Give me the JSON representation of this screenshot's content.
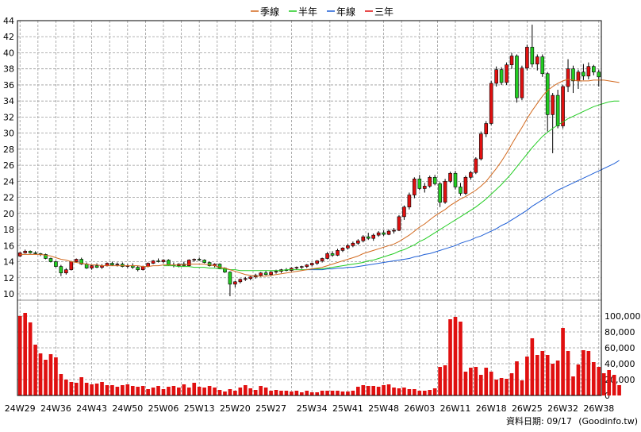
{
  "chart_data": {
    "type": "candlestick",
    "legend": {
      "placement": "top",
      "items": [
        {
          "label": "季線",
          "color": "#d2691e"
        },
        {
          "label": "半年",
          "color": "#22cc22"
        },
        {
          "label": "年線",
          "color": "#1f5fd6"
        },
        {
          "label": "三年",
          "color": "#e01010"
        }
      ]
    },
    "up_color": "#e01010",
    "down_color": "#22cc22",
    "volume_color": "#e01010",
    "price_axis": {
      "min": 10,
      "max": 44,
      "step": 2,
      "ticks": [
        "10",
        "12",
        "14",
        "16",
        "18",
        "20",
        "22",
        "24",
        "26",
        "28",
        "30",
        "32",
        "34",
        "36",
        "38",
        "40",
        "42",
        "44"
      ]
    },
    "volume_axis": {
      "min": 0,
      "max": 120000,
      "ticks": [
        "0",
        "20,000",
        "40,000",
        "60,000",
        "80,000",
        "100,000"
      ],
      "tick_values": [
        0,
        20000,
        40000,
        60000,
        80000,
        100000
      ]
    },
    "x_labels": [
      "24W29",
      "24W36",
      "24W43",
      "24W50",
      "25W06",
      "25W13",
      "25W20",
      "25W27",
      "25W34",
      "25W41",
      "25W48",
      "26W03",
      "26W11",
      "26W18",
      "26W25",
      "26W32",
      "26W38"
    ],
    "grid": true,
    "footnote": "資料日期: 09/17",
    "source": "(Goodinfo.tw)",
    "candles": [
      [
        14.7,
        15.2,
        14.6,
        15.1
      ],
      [
        15.1,
        15.5,
        15.0,
        15.3
      ],
      [
        15.3,
        15.4,
        15.0,
        15.1
      ],
      [
        15.1,
        15.3,
        14.9,
        15.0
      ],
      [
        15.0,
        15.1,
        14.7,
        14.9
      ],
      [
        14.9,
        15.0,
        14.3,
        14.4
      ],
      [
        14.4,
        14.5,
        13.9,
        14.0
      ],
      [
        14.0,
        14.1,
        13.3,
        13.4
      ],
      [
        13.4,
        13.6,
        12.2,
        12.6
      ],
      [
        12.6,
        13.2,
        12.4,
        13.0
      ],
      [
        13.0,
        14.1,
        12.9,
        14.0
      ],
      [
        14.0,
        14.4,
        13.9,
        14.3
      ],
      [
        14.3,
        14.5,
        13.6,
        13.7
      ],
      [
        13.7,
        13.9,
        13.1,
        13.2
      ],
      [
        13.2,
        13.6,
        13.0,
        13.5
      ],
      [
        13.5,
        13.8,
        13.2,
        13.3
      ],
      [
        13.3,
        13.7,
        13.1,
        13.5
      ],
      [
        13.5,
        13.9,
        13.4,
        13.8
      ],
      [
        13.8,
        14.0,
        13.5,
        13.6
      ],
      [
        13.6,
        13.9,
        13.4,
        13.7
      ],
      [
        13.7,
        13.9,
        13.3,
        13.4
      ],
      [
        13.4,
        13.7,
        13.2,
        13.5
      ],
      [
        13.5,
        13.8,
        13.1,
        13.3
      ],
      [
        13.3,
        13.5,
        12.8,
        13.0
      ],
      [
        13.0,
        13.5,
        12.9,
        13.4
      ],
      [
        13.4,
        13.9,
        13.3,
        13.8
      ],
      [
        13.8,
        14.2,
        13.7,
        14.1
      ],
      [
        14.1,
        14.4,
        13.9,
        14.0
      ],
      [
        14.0,
        14.3,
        13.8,
        14.2
      ],
      [
        14.2,
        14.3,
        13.5,
        13.6
      ],
      [
        13.6,
        13.9,
        13.3,
        13.5
      ],
      [
        13.5,
        13.8,
        13.3,
        13.7
      ],
      [
        13.7,
        14.0,
        13.4,
        13.5
      ],
      [
        13.5,
        14.3,
        13.4,
        14.2
      ],
      [
        14.2,
        14.4,
        14.0,
        14.3
      ],
      [
        14.3,
        14.5,
        14.1,
        14.2
      ],
      [
        14.2,
        14.3,
        13.8,
        13.9
      ],
      [
        13.9,
        14.0,
        13.4,
        13.5
      ],
      [
        13.5,
        13.8,
        13.3,
        13.7
      ],
      [
        13.7,
        13.8,
        13.1,
        13.2
      ],
      [
        13.2,
        13.3,
        12.6,
        12.7
      ],
      [
        12.7,
        12.8,
        9.7,
        11.2
      ],
      [
        11.2,
        11.6,
        10.8,
        11.5
      ],
      [
        11.5,
        11.9,
        11.3,
        11.8
      ],
      [
        11.8,
        12.1,
        11.6,
        11.9
      ],
      [
        11.9,
        12.2,
        11.7,
        12.1
      ],
      [
        12.1,
        12.5,
        11.9,
        12.3
      ],
      [
        12.3,
        12.7,
        12.1,
        12.6
      ],
      [
        12.6,
        12.9,
        12.3,
        12.4
      ],
      [
        12.4,
        12.8,
        12.2,
        12.7
      ],
      [
        12.7,
        13.0,
        12.5,
        12.8
      ],
      [
        12.8,
        13.1,
        12.6,
        13.0
      ],
      [
        13.0,
        13.2,
        12.8,
        12.9
      ],
      [
        12.9,
        13.3,
        12.8,
        13.2
      ],
      [
        13.2,
        13.4,
        13.0,
        13.3
      ],
      [
        13.3,
        13.5,
        13.1,
        13.4
      ],
      [
        13.4,
        13.7,
        13.2,
        13.6
      ],
      [
        13.6,
        13.9,
        13.4,
        13.8
      ],
      [
        13.8,
        14.2,
        13.6,
        14.1
      ],
      [
        14.1,
        14.5,
        13.9,
        14.4
      ],
      [
        14.4,
        15.2,
        14.3,
        15.0
      ],
      [
        15.0,
        15.3,
        14.6,
        14.8
      ],
      [
        14.8,
        15.6,
        14.7,
        15.4
      ],
      [
        15.4,
        15.8,
        15.2,
        15.7
      ],
      [
        15.7,
        16.2,
        15.5,
        16.0
      ],
      [
        16.0,
        16.5,
        15.8,
        16.3
      ],
      [
        16.3,
        16.8,
        16.1,
        16.6
      ],
      [
        16.6,
        17.3,
        16.4,
        17.1
      ],
      [
        17.1,
        17.6,
        16.7,
        16.9
      ],
      [
        16.9,
        17.5,
        16.6,
        17.3
      ],
      [
        17.3,
        17.8,
        17.1,
        17.6
      ],
      [
        17.6,
        17.9,
        17.2,
        17.4
      ],
      [
        17.4,
        18.0,
        17.3,
        17.8
      ],
      [
        17.8,
        18.2,
        17.5,
        17.9
      ],
      [
        17.9,
        19.8,
        17.8,
        19.6
      ],
      [
        19.6,
        21.0,
        19.2,
        20.8
      ],
      [
        20.8,
        22.6,
        20.5,
        22.3
      ],
      [
        22.3,
        24.5,
        21.9,
        24.3
      ],
      [
        24.3,
        24.8,
        22.9,
        23.1
      ],
      [
        23.1,
        23.8,
        22.6,
        23.4
      ],
      [
        23.4,
        24.7,
        23.2,
        24.5
      ],
      [
        24.5,
        24.8,
        23.5,
        23.7
      ],
      [
        23.7,
        23.9,
        20.8,
        21.4
      ],
      [
        21.4,
        24.3,
        21.2,
        24.0
      ],
      [
        24.0,
        25.2,
        23.8,
        25.0
      ],
      [
        25.0,
        25.3,
        23.0,
        23.3
      ],
      [
        23.3,
        23.8,
        22.2,
        22.5
      ],
      [
        22.5,
        24.7,
        22.3,
        24.5
      ],
      [
        24.5,
        25.3,
        24.2,
        25.1
      ],
      [
        25.1,
        27.0,
        24.9,
        26.8
      ],
      [
        26.8,
        30.2,
        26.6,
        29.9
      ],
      [
        29.9,
        31.5,
        29.5,
        31.2
      ],
      [
        31.2,
        36.5,
        31.0,
        36.2
      ],
      [
        36.2,
        38.3,
        35.8,
        37.9
      ],
      [
        37.9,
        38.2,
        36.0,
        36.3
      ],
      [
        36.3,
        38.8,
        36.0,
        38.5
      ],
      [
        38.5,
        40.0,
        38.0,
        39.6
      ],
      [
        39.6,
        39.8,
        33.8,
        34.4
      ],
      [
        34.4,
        38.4,
        34.1,
        38.1
      ],
      [
        38.1,
        41.0,
        37.8,
        40.7
      ],
      [
        40.7,
        43.5,
        38.2,
        38.6
      ],
      [
        38.6,
        39.8,
        37.8,
        39.5
      ],
      [
        39.5,
        39.8,
        37.0,
        37.4
      ],
      [
        37.4,
        37.6,
        30.2,
        32.3
      ],
      [
        32.3,
        35.0,
        27.5,
        34.7
      ],
      [
        34.7,
        35.4,
        30.6,
        30.9
      ],
      [
        30.9,
        36.0,
        30.6,
        35.8
      ],
      [
        35.8,
        39.2,
        35.1,
        38.0
      ],
      [
        38.0,
        38.4,
        35.0,
        36.5
      ],
      [
        36.5,
        37.9,
        35.5,
        37.6
      ],
      [
        37.6,
        38.6,
        36.6,
        37.1
      ],
      [
        37.1,
        38.8,
        36.7,
        38.3
      ],
      [
        38.3,
        38.5,
        37.2,
        37.6
      ],
      [
        37.6,
        37.9,
        35.8,
        37.0
      ]
    ],
    "volumes": [
      100000,
      104000,
      92000,
      64000,
      53000,
      45000,
      52000,
      48000,
      27000,
      20000,
      17000,
      16000,
      23000,
      16000,
      14000,
      15000,
      17000,
      13000,
      13000,
      11000,
      13000,
      14000,
      12000,
      11000,
      12000,
      8000,
      10000,
      12000,
      8000,
      11000,
      12000,
      10000,
      14000,
      10000,
      16000,
      11000,
      10000,
      12000,
      10000,
      7000,
      5000,
      8000,
      6000,
      10000,
      13000,
      9000,
      7000,
      12000,
      10000,
      6000,
      7000,
      6000,
      6000,
      5000,
      6000,
      4000,
      6000,
      4000,
      4000,
      6000,
      6000,
      6000,
      6000,
      5000,
      5000,
      6000,
      11000,
      13000,
      12000,
      12000,
      11000,
      13000,
      14000,
      10000,
      9000,
      10000,
      8000,
      8000,
      6000,
      6000,
      7000,
      9000,
      36000,
      38000,
      96000,
      99000,
      93000,
      30000,
      35000,
      36000,
      26000,
      35000,
      30000,
      20000,
      22000,
      21000,
      28000,
      43000,
      19000,
      49000,
      72000,
      51000,
      56000,
      51000,
      40000,
      44000,
      85000,
      56000,
      24000,
      39000,
      57000,
      56000,
      42000,
      36000,
      28000,
      32000,
      26000,
      13000
    ],
    "ma_quarter": [
      14.9,
      14.9,
      14.9,
      14.9,
      14.9,
      14.8,
      14.7,
      14.5,
      14.3,
      14.2,
      14.0,
      13.9,
      13.8,
      13.7,
      13.6,
      13.6,
      13.5,
      13.5,
      13.5,
      13.5,
      13.5,
      13.5,
      13.5,
      13.5,
      13.4,
      13.4,
      13.5,
      13.5,
      13.6,
      13.6,
      13.6,
      13.6,
      13.6,
      13.7,
      13.7,
      13.7,
      13.7,
      13.6,
      13.5,
      13.3,
      13.2,
      13.0,
      12.8,
      12.6,
      12.4,
      12.3,
      12.2,
      12.2,
      12.2,
      12.3,
      12.4,
      12.5,
      12.6,
      12.7,
      12.8,
      12.9,
      13.0,
      13.1,
      13.2,
      13.3,
      13.5,
      13.7,
      13.9,
      14.1,
      14.3,
      14.5,
      14.7,
      15.0,
      15.2,
      15.4,
      15.6,
      15.8,
      16.0,
      16.2,
      16.5,
      16.9,
      17.3,
      17.8,
      18.3,
      18.7,
      19.2,
      19.7,
      20.1,
      20.5,
      21.0,
      21.4,
      21.8,
      22.1,
      22.5,
      22.9,
      23.4,
      24.0,
      24.8,
      25.6,
      26.5,
      27.5,
      28.6,
      29.7,
      30.7,
      31.8,
      32.8,
      33.7,
      34.6,
      35.3,
      35.8,
      36.2,
      36.5,
      36.7,
      36.6,
      36.5,
      36.5,
      36.5,
      36.6,
      36.6,
      36.6,
      36.5,
      36.4,
      36.3
    ],
    "ma_half": [
      null,
      null,
      null,
      null,
      null,
      null,
      null,
      null,
      null,
      null,
      null,
      null,
      null,
      null,
      null,
      null,
      null,
      null,
      null,
      null,
      null,
      null,
      null,
      null,
      null,
      null,
      null,
      null,
      13.5,
      13.5,
      13.5,
      13.4,
      13.4,
      13.4,
      13.3,
      13.3,
      13.3,
      13.2,
      13.2,
      13.1,
      13.1,
      13.0,
      13.0,
      12.9,
      12.9,
      12.9,
      12.9,
      12.9,
      12.9,
      12.9,
      12.9,
      12.9,
      13.0,
      13.0,
      13.0,
      13.0,
      13.0,
      13.1,
      13.1,
      13.1,
      13.2,
      13.3,
      13.4,
      13.5,
      13.6,
      13.7,
      13.8,
      13.9,
      14.1,
      14.2,
      14.4,
      14.6,
      14.8,
      15.0,
      15.3,
      15.5,
      15.8,
      16.1,
      16.5,
      16.8,
      17.2,
      17.6,
      18.0,
      18.4,
      18.8,
      19.2,
      19.6,
      20.0,
      20.4,
      20.8,
      21.3,
      21.8,
      22.4,
      23.0,
      23.6,
      24.3,
      25.0,
      25.8,
      26.6,
      27.4,
      28.2,
      28.9,
      29.6,
      30.1,
      30.6,
      31.0,
      31.4,
      31.8,
      32.1,
      32.4,
      32.7,
      33.0,
      33.3,
      33.5,
      33.7,
      33.9,
      34.0,
      34.0
    ],
    "ma_year": [
      null,
      null,
      null,
      null,
      null,
      null,
      null,
      null,
      null,
      null,
      null,
      null,
      null,
      null,
      null,
      null,
      null,
      null,
      null,
      null,
      null,
      null,
      null,
      null,
      null,
      null,
      null,
      null,
      null,
      null,
      null,
      null,
      null,
      null,
      null,
      null,
      null,
      null,
      null,
      null,
      null,
      null,
      null,
      null,
      null,
      null,
      null,
      null,
      null,
      null,
      null,
      null,
      null,
      null,
      null,
      null,
      13.0,
      13.0,
      13.0,
      13.0,
      13.1,
      13.1,
      13.2,
      13.2,
      13.3,
      13.3,
      13.4,
      13.5,
      13.6,
      13.7,
      13.8,
      13.9,
      14.0,
      14.1,
      14.2,
      14.3,
      14.4,
      14.6,
      14.7,
      14.9,
      15.0,
      15.2,
      15.4,
      15.6,
      15.8,
      16.0,
      16.3,
      16.5,
      16.7,
      17.0,
      17.2,
      17.5,
      17.8,
      18.1,
      18.5,
      18.8,
      19.2,
      19.6,
      20.0,
      20.4,
      20.9,
      21.3,
      21.7,
      22.1,
      22.5,
      22.9,
      23.2,
      23.5,
      23.8,
      24.1,
      24.4,
      24.7,
      25.0,
      25.3,
      25.6,
      25.9,
      26.2,
      26.6
    ]
  }
}
